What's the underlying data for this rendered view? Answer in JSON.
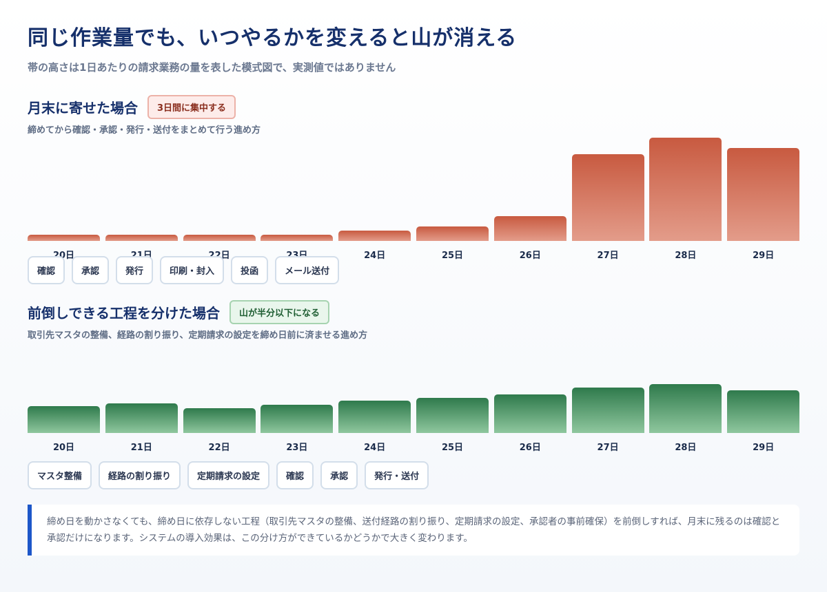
{
  "title": "同じ作業量でも、いつやるかを変えると山が消える",
  "subtitle": "帯の高さは1日あたりの請求業務の量を表した模式図で、実測値ではありません",
  "sections": {
    "before": {
      "title": "月末に寄せた場合",
      "badge": "3日間に集中する",
      "desc": "締めてから確認・承認・発行・送付をまとめて行う進め方",
      "chips": [
        "確認",
        "承認",
        "発行",
        "印刷・封入",
        "投函",
        "メール送付"
      ]
    },
    "after": {
      "title": "前倒しできる工程を分けた場合",
      "badge": "山が半分以下になる",
      "desc": "取引先マスタの整備、経路の割り振り、定期請求の設定を締め日前に済ませる進め方",
      "chips": [
        "マスタ整備",
        "経路の割り振り",
        "定期請求の設定",
        "確認",
        "承認",
        "発行・送付"
      ]
    }
  },
  "note": "締め日を動かさなくても、締め日に依存しない工程（取引先マスタの整備、送付経路の割り振り、定期請求の設定、承認者の事前確保）を前倒しすれば、月末に残るのは確認と承認だけになります。システムの導入効果は、この分け方ができているかどうかで大きく変わります。",
  "colors": {
    "before": "#c85a40",
    "after": "#2f7a4c",
    "accent": "#1d57c9"
  },
  "chart_data": [
    {
      "type": "bar",
      "categories": [
        "20日",
        "21日",
        "22日",
        "23日",
        "24日",
        "25日",
        "26日",
        "27日",
        "28日",
        "29日"
      ],
      "values": [
        8,
        8,
        8,
        8,
        14,
        20,
        34,
        118,
        140,
        126
      ],
      "ylim": [
        0,
        140
      ]
    },
    {
      "type": "bar",
      "categories": [
        "20日",
        "21日",
        "22日",
        "23日",
        "24日",
        "25日",
        "26日",
        "27日",
        "28日",
        "29日"
      ],
      "values": [
        36,
        40,
        34,
        38,
        44,
        48,
        52,
        62,
        66,
        58
      ],
      "ylim": [
        0,
        140
      ]
    }
  ]
}
